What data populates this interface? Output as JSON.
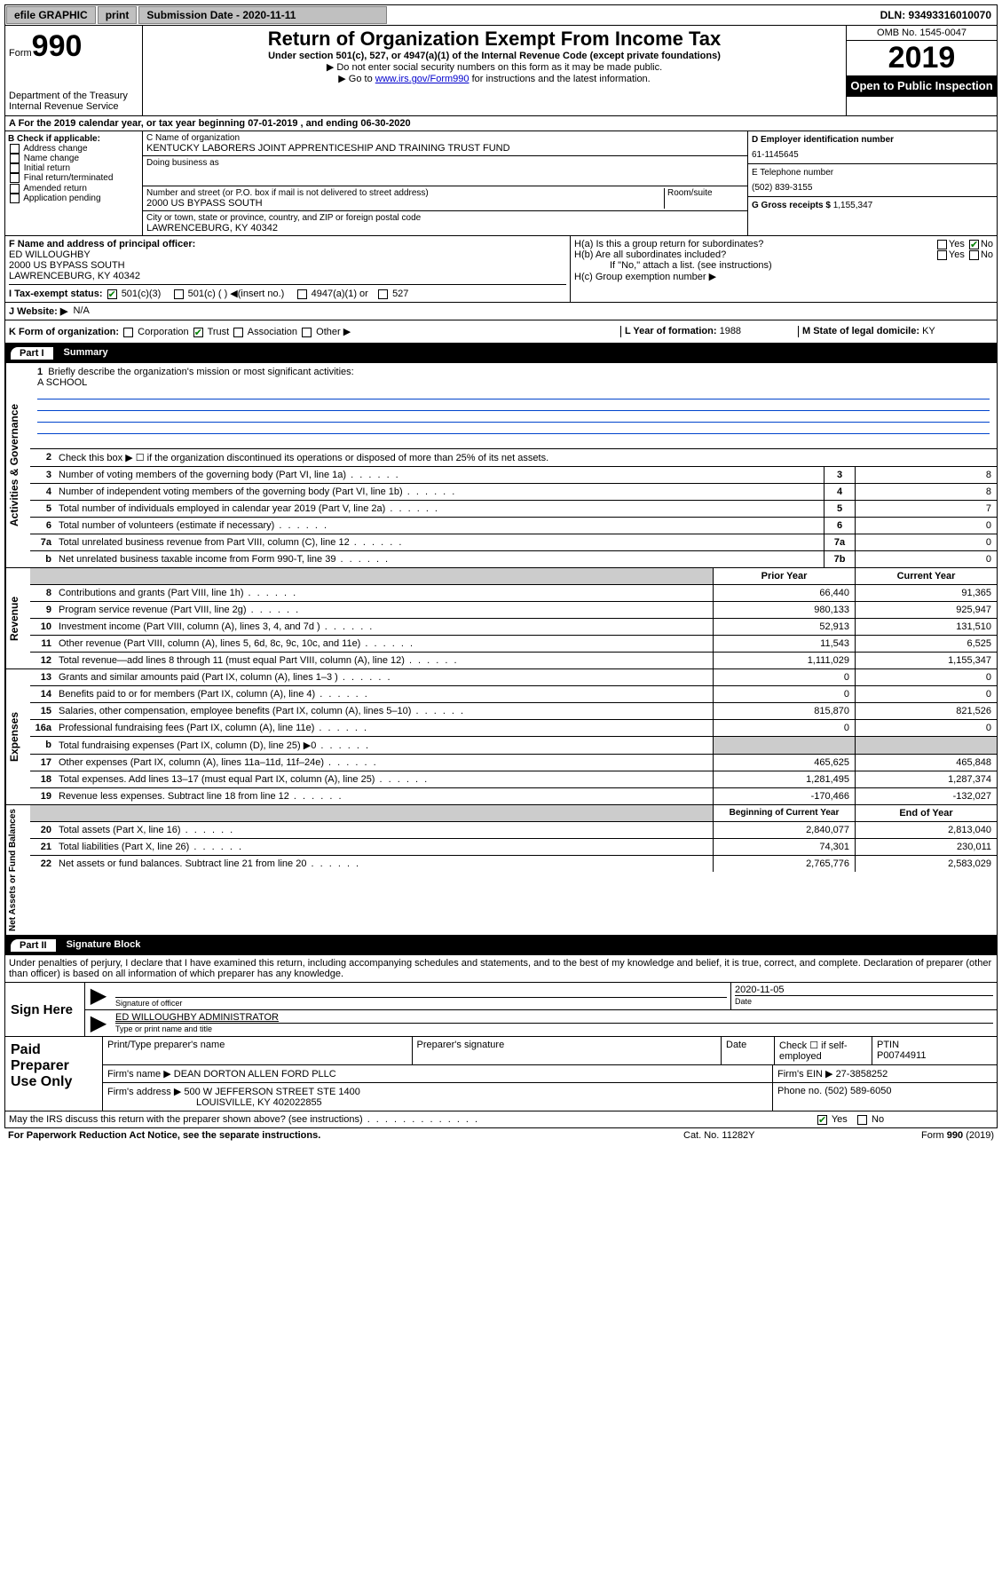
{
  "topbar": {
    "efile": "efile GRAPHIC",
    "print": "print",
    "sub_label": "Submission Date - 2020-11-11",
    "dln": "DLN: 93493316010070"
  },
  "header": {
    "form_prefix": "Form",
    "form_num": "990",
    "title": "Return of Organization Exempt From Income Tax",
    "sub1": "Under section 501(c), 527, or 4947(a)(1) of the Internal Revenue Code (except private foundations)",
    "sub2": "▶ Do not enter social security numbers on this form as it may be made public.",
    "sub3_pre": "▶ Go to ",
    "sub3_link": "www.irs.gov/Form990",
    "sub3_post": " for instructions and the latest information.",
    "omb": "OMB No. 1545-0047",
    "year": "2019",
    "open": "Open to Public Inspection",
    "dept1": "Department of the Treasury",
    "dept2": "Internal Revenue Service"
  },
  "row_a": "A For the 2019 calendar year, or tax year beginning 07-01-2019     , and ending 06-30-2020",
  "sec_b": {
    "hdr": "B Check if applicable:",
    "items": [
      "Address change",
      "Name change",
      "Initial return",
      "Final return/terminated",
      "Amended return",
      "Application pending"
    ]
  },
  "sec_c": {
    "lbl_name": "C Name of organization",
    "name": "KENTUCKY LABORERS JOINT APPRENTICESHIP AND TRAINING TRUST FUND",
    "lbl_dba": "Doing business as",
    "lbl_addr": "Number and street (or P.O. box if mail is not delivered to street address)",
    "lbl_room": "Room/suite",
    "addr": "2000 US BYPASS SOUTH",
    "lbl_city": "City or town, state or province, country, and ZIP or foreign postal code",
    "city": "LAWRENCEBURG, KY  40342"
  },
  "sec_d": {
    "lbl": "D Employer identification number",
    "val": "61-1145645",
    "lbl_e": "E Telephone number",
    "phone": "(502) 839-3155",
    "lbl_g": "G Gross receipts $",
    "gross": "1,155,347"
  },
  "sec_f": {
    "lbl": "F Name and address of principal officer:",
    "name": "ED WILLOUGHBY",
    "addr1": "2000 US BYPASS SOUTH",
    "addr2": "LAWRENCEBURG, KY  40342"
  },
  "sec_h": {
    "ha": "H(a)  Is this a group return for subordinates?",
    "hb": "H(b)  Are all subordinates included?",
    "hb_note": "If \"No,\" attach a list. (see instructions)",
    "hc": "H(c)  Group exemption number ▶",
    "yes": "Yes",
    "no": "No"
  },
  "row_i": {
    "lbl": "I  Tax-exempt status:",
    "opt1": "501(c)(3)",
    "opt2": "501(c) (   ) ◀(insert no.)",
    "opt3": "4947(a)(1) or",
    "opt4": "527"
  },
  "row_j": {
    "lbl": "J  Website: ▶",
    "val": "N/A"
  },
  "row_k": {
    "lbl": "K Form of organization:",
    "opts": [
      "Corporation",
      "Trust",
      "Association",
      "Other ▶"
    ],
    "l_lbl": "L Year of formation:",
    "l_val": "1988",
    "m_lbl": "M State of legal domicile:",
    "m_val": "KY"
  },
  "part1": {
    "num": "Part I",
    "title": "Summary"
  },
  "mission": {
    "num": "1",
    "lbl": "Briefly describe the organization's mission or most significant activities:",
    "val": "A SCHOOL"
  },
  "line2": "Check this box ▶ ☐  if the organization discontinued its operations or disposed of more than 25% of its net assets.",
  "vlabels": {
    "gov": "Activities & Governance",
    "rev": "Revenue",
    "exp": "Expenses",
    "net": "Net Assets or Fund Balances"
  },
  "col_hdrs": {
    "prior": "Prior Year",
    "current": "Current Year",
    "begin": "Beginning of Current Year",
    "end": "End of Year"
  },
  "gov_rows": [
    {
      "n": "3",
      "t": "Number of voting members of the governing body (Part VI, line 1a)",
      "box": "3",
      "v": "8"
    },
    {
      "n": "4",
      "t": "Number of independent voting members of the governing body (Part VI, line 1b)",
      "box": "4",
      "v": "8"
    },
    {
      "n": "5",
      "t": "Total number of individuals employed in calendar year 2019 (Part V, line 2a)",
      "box": "5",
      "v": "7"
    },
    {
      "n": "6",
      "t": "Total number of volunteers (estimate if necessary)",
      "box": "6",
      "v": "0"
    },
    {
      "n": "7a",
      "t": "Total unrelated business revenue from Part VIII, column (C), line 12",
      "box": "7a",
      "v": "0"
    },
    {
      "n": "b",
      "t": "Net unrelated business taxable income from Form 990-T, line 39",
      "box": "7b",
      "v": "0"
    }
  ],
  "rev_rows": [
    {
      "n": "8",
      "t": "Contributions and grants (Part VIII, line 1h)",
      "p": "66,440",
      "c": "91,365"
    },
    {
      "n": "9",
      "t": "Program service revenue (Part VIII, line 2g)",
      "p": "980,133",
      "c": "925,947"
    },
    {
      "n": "10",
      "t": "Investment income (Part VIII, column (A), lines 3, 4, and 7d )",
      "p": "52,913",
      "c": "131,510"
    },
    {
      "n": "11",
      "t": "Other revenue (Part VIII, column (A), lines 5, 6d, 8c, 9c, 10c, and 11e)",
      "p": "11,543",
      "c": "6,525"
    },
    {
      "n": "12",
      "t": "Total revenue—add lines 8 through 11 (must equal Part VIII, column (A), line 12)",
      "p": "1,111,029",
      "c": "1,155,347"
    }
  ],
  "exp_rows": [
    {
      "n": "13",
      "t": "Grants and similar amounts paid (Part IX, column (A), lines 1–3 )",
      "p": "0",
      "c": "0"
    },
    {
      "n": "14",
      "t": "Benefits paid to or for members (Part IX, column (A), line 4)",
      "p": "0",
      "c": "0"
    },
    {
      "n": "15",
      "t": "Salaries, other compensation, employee benefits (Part IX, column (A), lines 5–10)",
      "p": "815,870",
      "c": "821,526"
    },
    {
      "n": "16a",
      "t": "Professional fundraising fees (Part IX, column (A), line 11e)",
      "p": "0",
      "c": "0"
    },
    {
      "n": "b",
      "t": "Total fundraising expenses (Part IX, column (D), line 25) ▶0",
      "p": "",
      "c": "",
      "grey": true
    },
    {
      "n": "17",
      "t": "Other expenses (Part IX, column (A), lines 11a–11d, 11f–24e)",
      "p": "465,625",
      "c": "465,848"
    },
    {
      "n": "18",
      "t": "Total expenses. Add lines 13–17 (must equal Part IX, column (A), line 25)",
      "p": "1,281,495",
      "c": "1,287,374"
    },
    {
      "n": "19",
      "t": "Revenue less expenses. Subtract line 18 from line 12",
      "p": "-170,466",
      "c": "-132,027"
    }
  ],
  "net_rows": [
    {
      "n": "20",
      "t": "Total assets (Part X, line 16)",
      "p": "2,840,077",
      "c": "2,813,040"
    },
    {
      "n": "21",
      "t": "Total liabilities (Part X, line 26)",
      "p": "74,301",
      "c": "230,011"
    },
    {
      "n": "22",
      "t": "Net assets or fund balances. Subtract line 21 from line 20",
      "p": "2,765,776",
      "c": "2,583,029"
    }
  ],
  "part2": {
    "num": "Part II",
    "title": "Signature Block"
  },
  "sig": {
    "declare": "Under penalties of perjury, I declare that I have examined this return, including accompanying schedules and statements, and to the best of my knowledge and belief, it is true, correct, and complete. Declaration of preparer (other than officer) is based on all information of which preparer has any knowledge.",
    "sign_here": "Sign Here",
    "sig_off": "Signature of officer",
    "date": "2020-11-05",
    "date_lbl": "Date",
    "name": "ED WILLOUGHBY  ADMINISTRATOR",
    "name_lbl": "Type or print name and title"
  },
  "paid": {
    "title": "Paid Preparer Use Only",
    "h1": "Print/Type preparer's name",
    "h2": "Preparer's signature",
    "h3": "Date",
    "h4_pre": "Check ☐ if self-employed",
    "h5": "PTIN",
    "ptin": "P00744911",
    "firm_lbl": "Firm's name    ▶",
    "firm": "DEAN DORTON ALLEN FORD PLLC",
    "ein_lbl": "Firm's EIN ▶",
    "ein": "27-3858252",
    "addr_lbl": "Firm's address ▶",
    "addr": "500 W JEFFERSON STREET STE 1400",
    "addr2": "LOUISVILLE, KY  402022855",
    "phone_lbl": "Phone no.",
    "phone": "(502) 589-6050"
  },
  "footer": {
    "discuss": "May the IRS discuss this return with the preparer shown above? (see instructions)",
    "yes": "Yes",
    "no": "No",
    "pra": "For Paperwork Reduction Act Notice, see the separate instructions.",
    "cat": "Cat. No. 11282Y",
    "form": "Form 990 (2019)"
  }
}
